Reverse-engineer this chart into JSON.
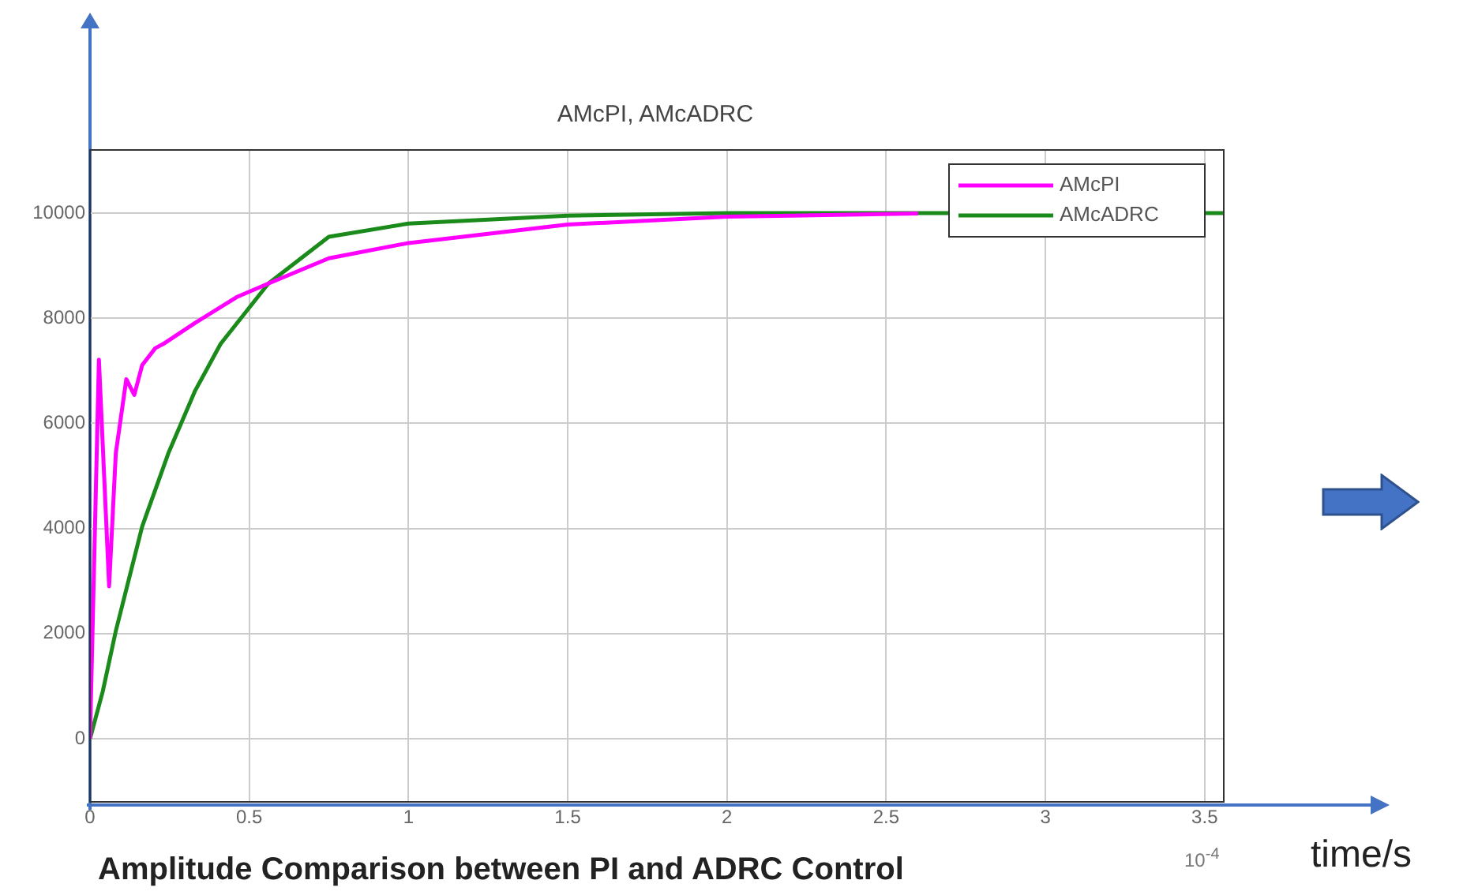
{
  "chart_data": {
    "type": "line",
    "title": "AMcPI, AMcADRC",
    "xlabel": "time/s",
    "annotations": [
      "10$^{-4}$",
      "Amplitude Comparison between PI and ADRC Control"
    ],
    "xlim": [
      0,
      3.56
    ],
    "xticks": [
      0,
      0.5,
      1,
      1.5,
      2,
      2.5,
      3,
      3.5
    ],
    "ylim": [
      -1200,
      11200
    ],
    "yticks": [
      0,
      2000,
      4000,
      6000,
      8000,
      10000
    ],
    "grid": true,
    "legend": "top right",
    "marker": "none",
    "line_style": "solid",
    "series": [
      {
        "name": "AMcPI",
        "color": "#ff00ff",
        "x": [
          0,
          0.028,
          0.06,
          0.081,
          0.114,
          0.139,
          0.164,
          0.205,
          0.23,
          0.33,
          0.46,
          0.56,
          0.75,
          1,
          1.5,
          2,
          2.6
        ],
        "values": [
          0,
          7210,
          2900,
          5430,
          6840,
          6540,
          7110,
          7430,
          7510,
          7910,
          8400,
          8660,
          9140,
          9430,
          9780,
          9930,
          9990
        ]
      },
      {
        "name": "AMcADRC",
        "color": "#1a8a1a",
        "x": [
          0,
          0.04,
          0.081,
          0.164,
          0.246,
          0.33,
          0.41,
          0.56,
          0.75,
          1,
          1.5,
          2,
          2.6,
          3.56
        ],
        "values": [
          0,
          900,
          2050,
          4040,
          5430,
          6620,
          7510,
          8660,
          9550,
          9800,
          9950,
          10000,
          10000,
          10000
        ]
      }
    ]
  }
}
